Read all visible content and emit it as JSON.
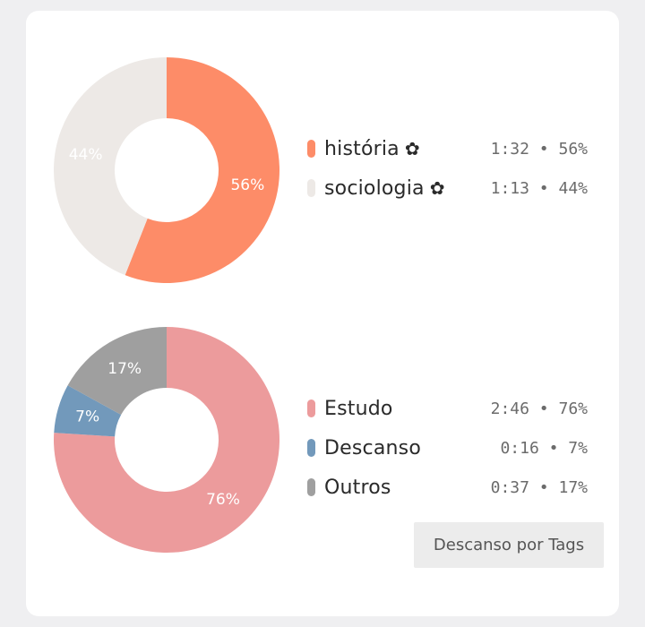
{
  "chart_data": [
    {
      "type": "pie",
      "title": "",
      "series": [
        {
          "name": "história",
          "value": 56,
          "label": "56%",
          "time": "1:32",
          "color": "#fd8c68",
          "label_color": "#ffffff"
        },
        {
          "name": "sociologia",
          "value": 44,
          "label": "44%",
          "time": "1:13",
          "color": "#ede9e6",
          "label_color": "#ffffff"
        }
      ],
      "legend_icon": "✿",
      "legend_placement": "right"
    },
    {
      "type": "pie",
      "title": "",
      "series": [
        {
          "name": "Estudo",
          "value": 76,
          "label": "76%",
          "time": "2:46",
          "color": "#ec9b9c",
          "label_color": "#ffffff"
        },
        {
          "name": "Descanso",
          "value": 7,
          "label": "7%",
          "time": "0:16",
          "color": "#7299bb",
          "label_color": "#ffffff"
        },
        {
          "name": "Outros",
          "value": 17,
          "label": "17%",
          "time": "0:37",
          "color": "#9f9f9f",
          "label_color": "#ffffff"
        }
      ],
      "legend_placement": "right"
    }
  ],
  "legend1": {
    "items": [
      {
        "label": "história",
        "icon": "✿",
        "value": "1:32 • 56%",
        "color": "#fd8c68"
      },
      {
        "label": "sociologia",
        "icon": "✿",
        "value": "1:13 • 44%",
        "color": "#ede9e6"
      }
    ]
  },
  "legend2": {
    "items": [
      {
        "label": "Estudo",
        "value": "2:46 • 76%",
        "color": "#ec9b9c"
      },
      {
        "label": "Descanso",
        "value": "0:16 • 7%",
        "color": "#7299bb"
      },
      {
        "label": "Outros",
        "value": "0:37 • 17%",
        "color": "#9f9f9f"
      }
    ]
  },
  "button": {
    "label": "Descanso por Tags"
  }
}
